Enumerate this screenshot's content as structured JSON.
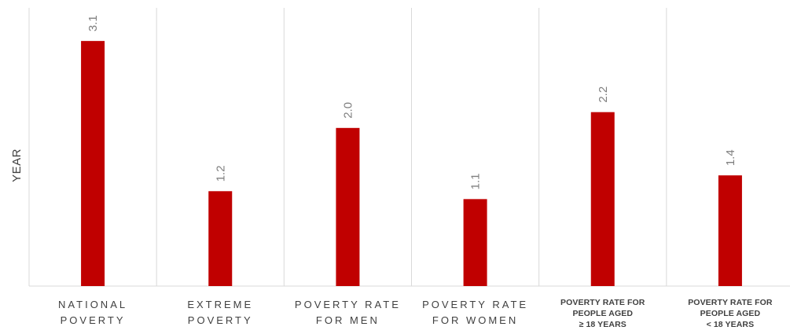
{
  "chart_data": {
    "type": "bar",
    "ylabel": "YEAR",
    "ylim": [
      0,
      3.5
    ],
    "grid": "vertical-separators",
    "bar_color": "#c00000",
    "categories": [
      {
        "lines": [
          "NATIONAL",
          "POVERTY"
        ],
        "style": "spaced"
      },
      {
        "lines": [
          "EXTREME",
          "POVERTY"
        ],
        "style": "spaced"
      },
      {
        "lines": [
          "POVERTY RATE",
          "FOR MEN"
        ],
        "style": "spaced"
      },
      {
        "lines": [
          "POVERTY RATE",
          "FOR WOMEN"
        ],
        "style": "spaced"
      },
      {
        "lines": [
          "POVERTY RATE FOR",
          "PEOPLE AGED",
          "≥ 18 YEARS"
        ],
        "style": "bold"
      },
      {
        "lines": [
          "POVERTY RATE FOR",
          "PEOPLE AGED",
          "< 18 YEARS"
        ],
        "style": "bold"
      }
    ],
    "values": [
      3.1,
      1.2,
      2.0,
      1.1,
      2.2,
      1.4
    ],
    "value_labels": [
      "3.1",
      "1.2",
      "2.0",
      "1.1",
      "2.2",
      "1.4"
    ]
  }
}
